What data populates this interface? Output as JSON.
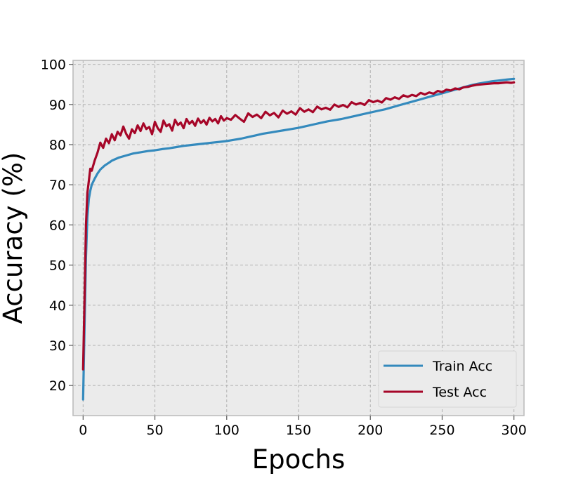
{
  "chart_data": {
    "type": "line",
    "title": "",
    "xlabel": "Epochs",
    "ylabel": "Accuracy (%)",
    "xlim": [
      -7,
      307
    ],
    "ylim": [
      12.5,
      101
    ],
    "xticks": [
      0,
      50,
      100,
      150,
      200,
      250,
      300
    ],
    "yticks": [
      20,
      30,
      40,
      50,
      60,
      70,
      80,
      90,
      100
    ],
    "grid": true,
    "legend_position": "lower-right",
    "colors": {
      "background": "#ebebeb",
      "grid": "#b0b0b0",
      "frame": "#bcbcbc"
    },
    "series": [
      {
        "name": "Train Acc",
        "color": "#348abd",
        "x": [
          0,
          1,
          2,
          3,
          4,
          5,
          6,
          8,
          10,
          12,
          15,
          18,
          20,
          25,
          30,
          35,
          40,
          45,
          50,
          55,
          60,
          65,
          70,
          75,
          80,
          85,
          90,
          95,
          100,
          105,
          110,
          115,
          120,
          125,
          130,
          135,
          140,
          145,
          150,
          155,
          160,
          165,
          170,
          175,
          180,
          185,
          190,
          195,
          200,
          205,
          210,
          215,
          220,
          225,
          230,
          235,
          240,
          245,
          250,
          255,
          260,
          265,
          270,
          275,
          280,
          285,
          290,
          295,
          300
        ],
        "y": [
          16.5,
          35,
          52,
          62,
          66.5,
          68.5,
          70,
          71.5,
          72.8,
          73.8,
          74.8,
          75.5,
          76,
          76.8,
          77.3,
          77.8,
          78.1,
          78.4,
          78.6,
          78.9,
          79.1,
          79.4,
          79.7,
          79.9,
          80.1,
          80.3,
          80.5,
          80.7,
          80.9,
          81.2,
          81.5,
          81.9,
          82.3,
          82.7,
          83,
          83.3,
          83.6,
          83.9,
          84.2,
          84.6,
          85,
          85.4,
          85.8,
          86.1,
          86.4,
          86.8,
          87.2,
          87.6,
          88,
          88.4,
          88.8,
          89.3,
          89.8,
          90.3,
          90.8,
          91.3,
          91.8,
          92.3,
          92.8,
          93.3,
          93.8,
          94.3,
          94.8,
          95.2,
          95.5,
          95.8,
          96,
          96.2,
          96.4
        ]
      },
      {
        "name": "Test Acc",
        "color": "#a60628",
        "x": [
          0,
          1,
          2,
          3,
          4,
          5,
          6,
          8,
          10,
          12,
          14,
          16,
          18,
          20,
          22,
          24,
          26,
          28,
          30,
          32,
          34,
          36,
          38,
          40,
          42,
          44,
          46,
          48,
          50,
          52,
          54,
          56,
          58,
          60,
          62,
          64,
          66,
          68,
          70,
          72,
          74,
          76,
          78,
          80,
          82,
          84,
          86,
          88,
          90,
          92,
          94,
          96,
          98,
          100,
          103,
          106,
          109,
          112,
          115,
          118,
          121,
          124,
          127,
          130,
          133,
          136,
          139,
          142,
          145,
          148,
          151,
          154,
          157,
          160,
          163,
          166,
          169,
          172,
          175,
          178,
          181,
          184,
          187,
          190,
          193,
          196,
          199,
          202,
          205,
          208,
          211,
          214,
          217,
          220,
          223,
          226,
          229,
          232,
          235,
          238,
          241,
          244,
          247,
          250,
          253,
          256,
          259,
          262,
          265,
          268,
          271,
          274,
          277,
          280,
          283,
          286,
          289,
          292,
          295,
          298,
          300
        ],
        "y": [
          24,
          42,
          60,
          68,
          71,
          74,
          73.5,
          76,
          78,
          80.5,
          79.2,
          81.5,
          80.4,
          82.6,
          81.1,
          83.2,
          82.3,
          84.5,
          82.7,
          81.5,
          83.8,
          82.9,
          84.8,
          83.4,
          85.3,
          83.9,
          84.4,
          82.6,
          85.7,
          84.1,
          83.2,
          86,
          84.6,
          85.1,
          83.5,
          86.2,
          84.9,
          85.5,
          84.1,
          86.4,
          85.2,
          85.9,
          84.7,
          86.5,
          85.4,
          86.1,
          85,
          86.7,
          85.8,
          86.4,
          85.3,
          87.1,
          86,
          86.6,
          86.2,
          87.4,
          86.5,
          85.7,
          87.8,
          86.9,
          87.5,
          86.6,
          88.2,
          87.3,
          87.9,
          86.8,
          88.5,
          87.7,
          88.3,
          87.5,
          89.1,
          88.2,
          88.8,
          88.1,
          89.5,
          88.8,
          89.2,
          88.7,
          90,
          89.4,
          89.9,
          89.3,
          90.6,
          90,
          90.4,
          89.9,
          91.1,
          90.6,
          91,
          90.5,
          91.6,
          91.2,
          91.8,
          91.4,
          92.3,
          91.9,
          92.4,
          92.1,
          92.9,
          92.5,
          93,
          92.7,
          93.4,
          93.1,
          93.7,
          93.5,
          94,
          93.8,
          94.3,
          94.4,
          94.7,
          94.9,
          95,
          95.1,
          95.2,
          95.3,
          95.3,
          95.4,
          95.5,
          95.4,
          95.5
        ]
      }
    ]
  }
}
